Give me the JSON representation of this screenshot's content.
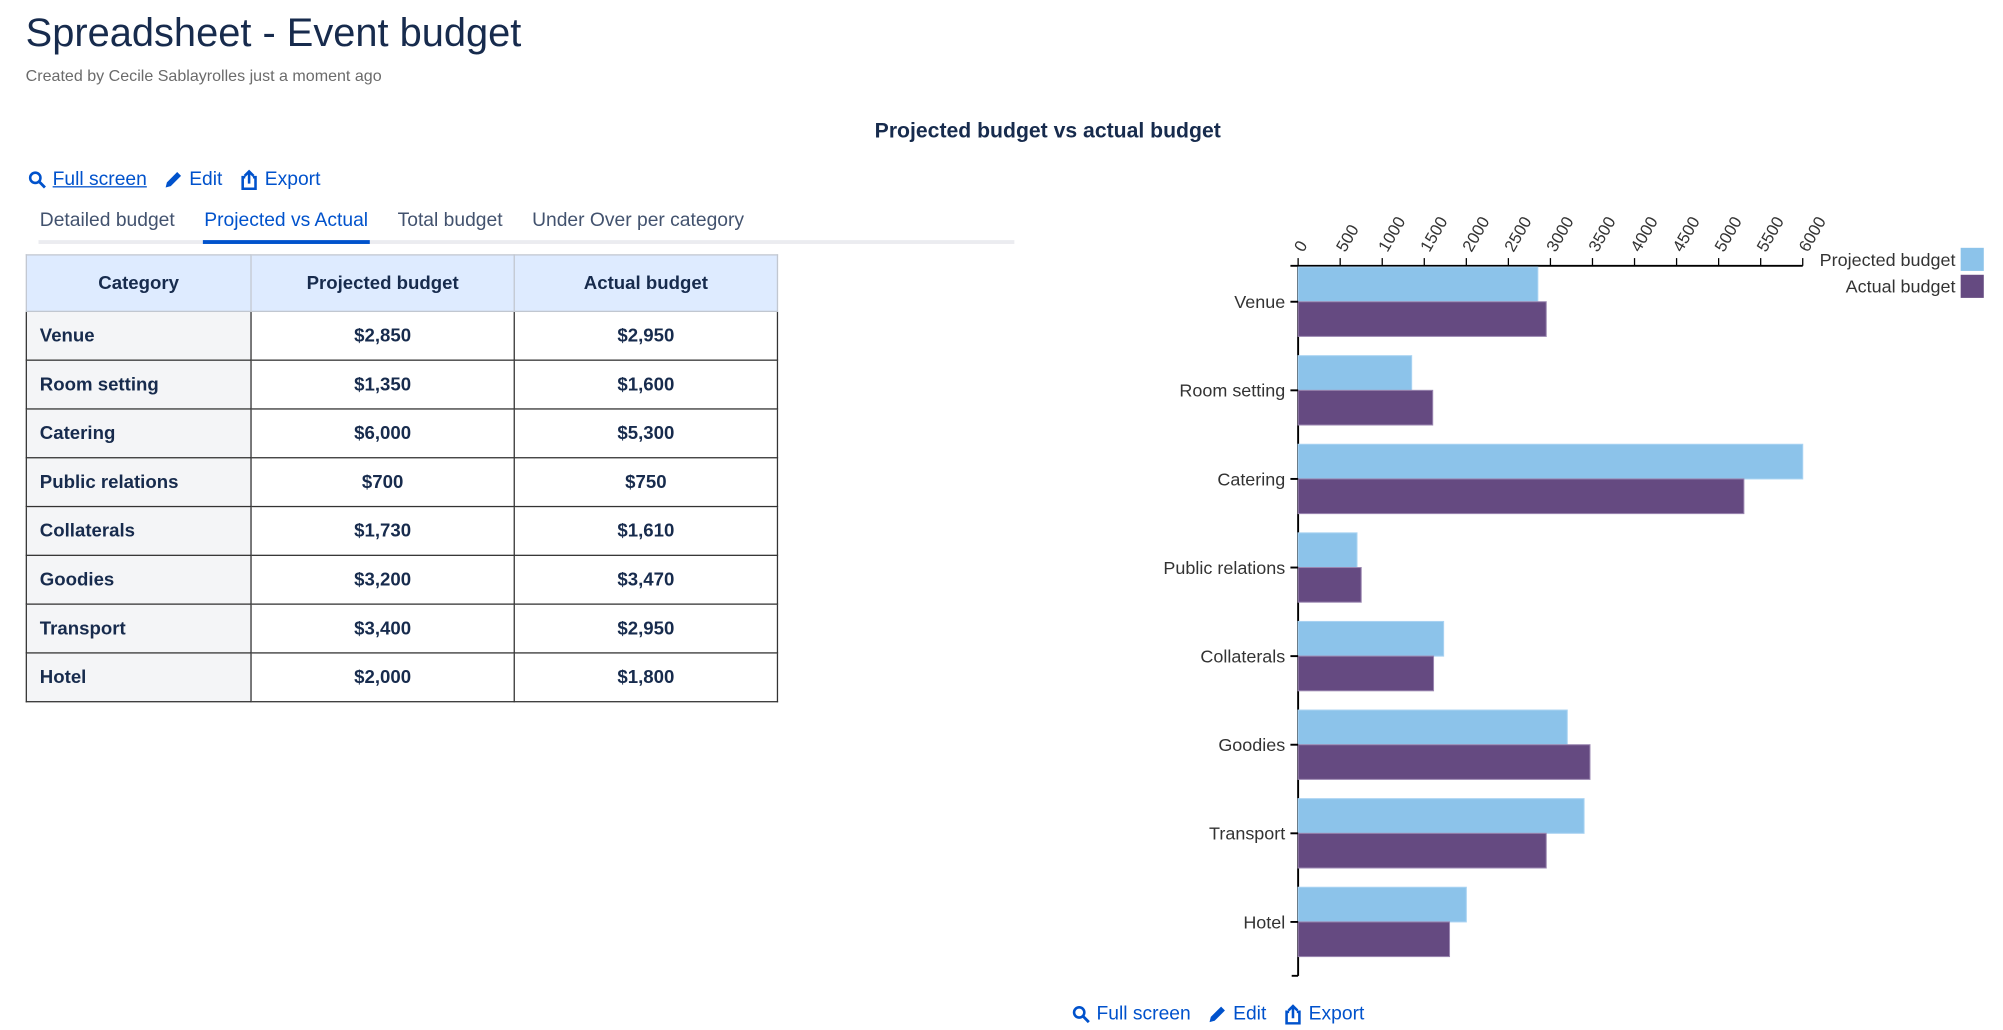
{
  "header": {
    "title": "Spreadsheet - Event budget",
    "subtitle": "Created by Cecile Sablayrolles just a moment ago"
  },
  "actions": {
    "full_screen": "Full screen",
    "edit": "Edit",
    "export": "Export"
  },
  "tabs": [
    {
      "label": "Detailed budget",
      "active": false
    },
    {
      "label": "Projected vs Actual",
      "active": true
    },
    {
      "label": "Total budget",
      "active": false
    },
    {
      "label": "Under Over per category",
      "active": false
    }
  ],
  "table": {
    "columns": [
      "Category",
      "Projected budget",
      "Actual budget"
    ],
    "rows": [
      [
        "Venue",
        "$2,850",
        "$2,950"
      ],
      [
        "Room setting",
        "$1,350",
        "$1,600"
      ],
      [
        "Catering",
        "$6,000",
        "$5,300"
      ],
      [
        "Public relations",
        "$700",
        "$750"
      ],
      [
        "Collaterals",
        "$1,730",
        "$1,610"
      ],
      [
        "Goodies",
        "$3,200",
        "$3,470"
      ],
      [
        "Transport",
        "$3,400",
        "$2,950"
      ],
      [
        "Hotel",
        "$2,000",
        "$1,800"
      ]
    ]
  },
  "chart_data": {
    "type": "bar",
    "orientation": "horizontal",
    "title": "Projected budget vs actual budget",
    "categories": [
      "Venue",
      "Room setting",
      "Catering",
      "Public relations",
      "Collaterals",
      "Goodies",
      "Transport",
      "Hotel"
    ],
    "series": [
      {
        "name": "Projected budget",
        "color": "#8cc3ea",
        "values": [
          2850,
          1350,
          6000,
          700,
          1730,
          3200,
          3400,
          2000
        ]
      },
      {
        "name": "Actual budget",
        "color": "#654a81",
        "values": [
          2950,
          1600,
          5300,
          750,
          1610,
          3470,
          2950,
          1800
        ]
      }
    ],
    "xlim": [
      0,
      6000
    ],
    "xticks": [
      0,
      500,
      1000,
      1500,
      2000,
      2500,
      3000,
      3500,
      4000,
      4500,
      5000,
      5500,
      6000
    ],
    "x_axis_position": "top",
    "grid": false,
    "legend": "top-right"
  }
}
